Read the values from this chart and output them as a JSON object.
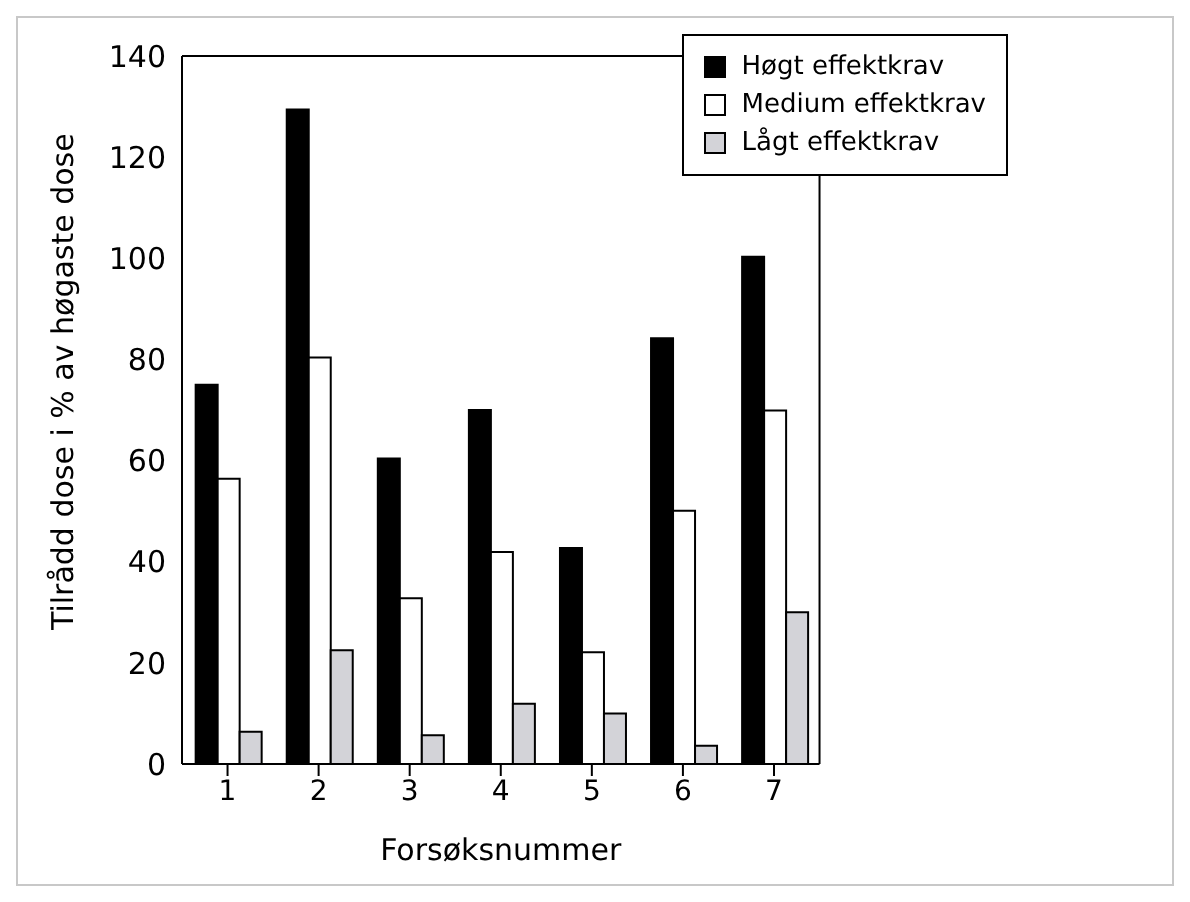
{
  "chart_data": {
    "type": "bar",
    "xlabel": "Forsøksnummer",
    "ylabel": "Tilrådd dose i % av høgaste dose",
    "categories": [
      "1",
      "2",
      "3",
      "4",
      "5",
      "6",
      "7"
    ],
    "series": [
      {
        "name": "Høgt effektkrav",
        "color": "#000000",
        "values": [
          75,
          129.4,
          60.4,
          70,
          42.7,
          84.2,
          100.3
        ]
      },
      {
        "name": "Medium effektkrav",
        "color": "#ffffff",
        "values": [
          56.4,
          80.4,
          32.8,
          41.9,
          22.1,
          50.1,
          69.9
        ]
      },
      {
        "name": "Lågt effektkrav",
        "color": "#d3d3d8",
        "values": [
          6.4,
          22.5,
          5.7,
          11.9,
          10,
          3.6,
          30
        ]
      }
    ],
    "ylim": [
      0,
      140
    ],
    "yticks": [
      0,
      20,
      40,
      60,
      80,
      100,
      120,
      140
    ],
    "grid": false,
    "legend": "top right"
  }
}
